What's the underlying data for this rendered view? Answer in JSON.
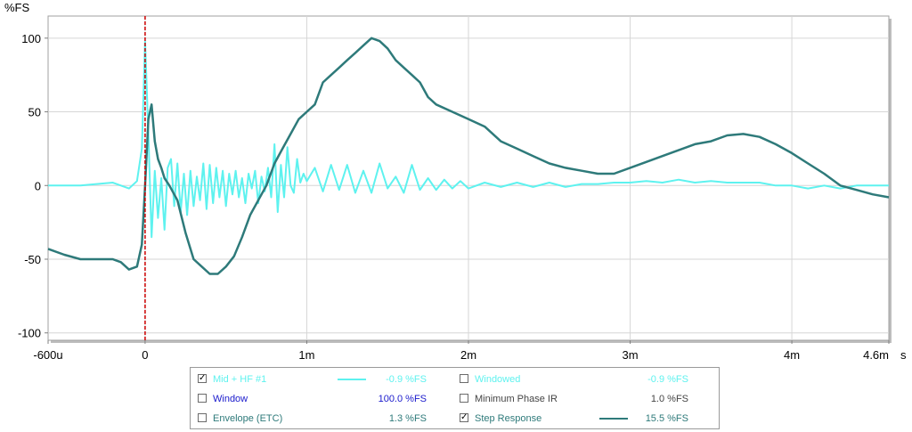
{
  "chart_data": {
    "type": "line",
    "ylabel": "%FS",
    "xunit": "s",
    "xlim": [
      -0.0006,
      0.0046
    ],
    "ylim": [
      -105,
      115
    ],
    "yticks": [
      100,
      50,
      0,
      -50,
      -100
    ],
    "xticks": [
      {
        "value": -0.0006,
        "label": "-600u"
      },
      {
        "value": 0,
        "label": "0"
      },
      {
        "value": 0.001,
        "label": "1m"
      },
      {
        "value": 0.002,
        "label": "2m"
      },
      {
        "value": 0.003,
        "label": "3m"
      },
      {
        "value": 0.004,
        "label": "4m"
      },
      {
        "value": 0.0046,
        "label": "4.6m"
      }
    ],
    "grid": true,
    "marker_x": 0,
    "marker_color": "#cc0000",
    "series": [
      {
        "name": "Mid + HF #1",
        "color": "#5ef2ef",
        "x": [
          -0.0006,
          -0.0004,
          -0.0002,
          -0.0001,
          -5e-05,
          -2e-05,
          0.0,
          2e-05,
          4e-05,
          6e-05,
          8e-05,
          0.0001,
          0.00012,
          0.00014,
          0.00016,
          0.00018,
          0.0002,
          0.00022,
          0.00024,
          0.00026,
          0.00028,
          0.0003,
          0.00032,
          0.00034,
          0.00036,
          0.00038,
          0.0004,
          0.00042,
          0.00044,
          0.00046,
          0.00048,
          0.0005,
          0.00052,
          0.00054,
          0.00056,
          0.00058,
          0.0006,
          0.00062,
          0.00064,
          0.00066,
          0.00068,
          0.0007,
          0.00072,
          0.00074,
          0.00076,
          0.00078,
          0.0008,
          0.00082,
          0.00084,
          0.00086,
          0.00088,
          0.0009,
          0.00092,
          0.00094,
          0.00096,
          0.00098,
          0.001,
          0.00105,
          0.0011,
          0.00115,
          0.0012,
          0.00125,
          0.0013,
          0.00135,
          0.0014,
          0.00145,
          0.0015,
          0.00155,
          0.0016,
          0.00165,
          0.0017,
          0.00175,
          0.0018,
          0.00185,
          0.0019,
          0.00195,
          0.002,
          0.0021,
          0.0022,
          0.0023,
          0.0024,
          0.0025,
          0.0026,
          0.0027,
          0.0028,
          0.0029,
          0.003,
          0.0031,
          0.0032,
          0.0033,
          0.0034,
          0.0035,
          0.0036,
          0.0037,
          0.0038,
          0.0039,
          0.004,
          0.0041,
          0.0042,
          0.0043,
          0.0044,
          0.0045,
          0.0046
        ],
        "values": [
          0,
          0,
          2,
          -2,
          3,
          25,
          98,
          35,
          -35,
          10,
          -22,
          5,
          -30,
          12,
          18,
          -14,
          15,
          -18,
          8,
          -20,
          10,
          -14,
          6,
          -10,
          15,
          -16,
          14,
          -12,
          12,
          -8,
          10,
          -14,
          8,
          -6,
          10,
          -8,
          5,
          -12,
          8,
          -2,
          10,
          -12,
          6,
          -4,
          12,
          -8,
          28,
          -18,
          14,
          -8,
          26,
          0,
          -5,
          18,
          2,
          8,
          3,
          12,
          -4,
          14,
          -3,
          14,
          -5,
          10,
          -5,
          15,
          -2,
          6,
          -5,
          14,
          -3,
          5,
          -3,
          4,
          -2,
          3,
          -2,
          2,
          -1,
          2,
          -1,
          2,
          -1,
          1,
          1,
          2,
          2,
          3,
          2,
          4,
          2,
          3,
          2,
          2,
          2,
          0,
          0,
          -2,
          0,
          -2,
          0,
          0,
          0
        ]
      },
      {
        "name": "Step Response",
        "color": "#2e7a7a",
        "x": [
          -0.0006,
          -0.0005,
          -0.0004,
          -0.0003,
          -0.0002,
          -0.00015,
          -0.0001,
          -5e-05,
          -2e-05,
          0.0,
          2e-05,
          4e-05,
          6e-05,
          8e-05,
          0.0001,
          0.00012,
          0.00015,
          0.0002,
          0.00025,
          0.0003,
          0.00035,
          0.0004,
          0.00045,
          0.0005,
          0.00055,
          0.0006,
          0.00065,
          0.0007,
          0.00075,
          0.0008,
          0.00085,
          0.0009,
          0.00095,
          0.001,
          0.00105,
          0.0011,
          0.00115,
          0.0012,
          0.00125,
          0.0013,
          0.00135,
          0.0014,
          0.00145,
          0.0015,
          0.00155,
          0.0016,
          0.00165,
          0.0017,
          0.00175,
          0.0018,
          0.0019,
          0.002,
          0.0021,
          0.0022,
          0.0023,
          0.0024,
          0.0025,
          0.0026,
          0.0027,
          0.0028,
          0.0029,
          0.003,
          0.0031,
          0.0032,
          0.0033,
          0.0034,
          0.0035,
          0.0036,
          0.0037,
          0.0038,
          0.0039,
          0.004,
          0.0041,
          0.0042,
          0.0043,
          0.0044,
          0.0045,
          0.0046
        ],
        "values": [
          -43,
          -47,
          -50,
          -50,
          -50,
          -52,
          -57,
          -55,
          -40,
          0,
          45,
          55,
          30,
          18,
          12,
          5,
          0,
          -10,
          -32,
          -50,
          -55,
          -60,
          -60,
          -55,
          -48,
          -35,
          -20,
          -10,
          0,
          15,
          25,
          35,
          45,
          50,
          55,
          70,
          75,
          80,
          85,
          90,
          95,
          100,
          98,
          93,
          85,
          80,
          75,
          70,
          60,
          55,
          50,
          45,
          40,
          30,
          25,
          20,
          15,
          12,
          10,
          8,
          8,
          12,
          16,
          20,
          24,
          28,
          30,
          34,
          35,
          33,
          28,
          22,
          15,
          8,
          0,
          -3,
          -6,
          -8
        ]
      }
    ]
  },
  "legend": {
    "items": [
      {
        "label": "Mid + HF #1",
        "checked": true,
        "value": "-0.9 %FS",
        "color": "#5ef2ef",
        "swatch": true
      },
      {
        "label": "Windowed",
        "checked": false,
        "value": "-0.9 %FS",
        "color": "#5ef2ef",
        "swatch": false
      },
      {
        "label": "Window",
        "checked": false,
        "value": "100.0 %FS",
        "color": "#1a1acc",
        "swatch": false
      },
      {
        "label": "Minimum Phase IR",
        "checked": false,
        "value": "1.0 %FS",
        "color": "#444444",
        "swatch": false
      },
      {
        "label": "Envelope (ETC)",
        "checked": false,
        "value": "1.3 %FS",
        "color": "#2e7a7a",
        "swatch": false
      },
      {
        "label": "Step Response",
        "checked": true,
        "value": "15.5 %FS",
        "color": "#2e7a7a",
        "swatch": true
      }
    ]
  }
}
